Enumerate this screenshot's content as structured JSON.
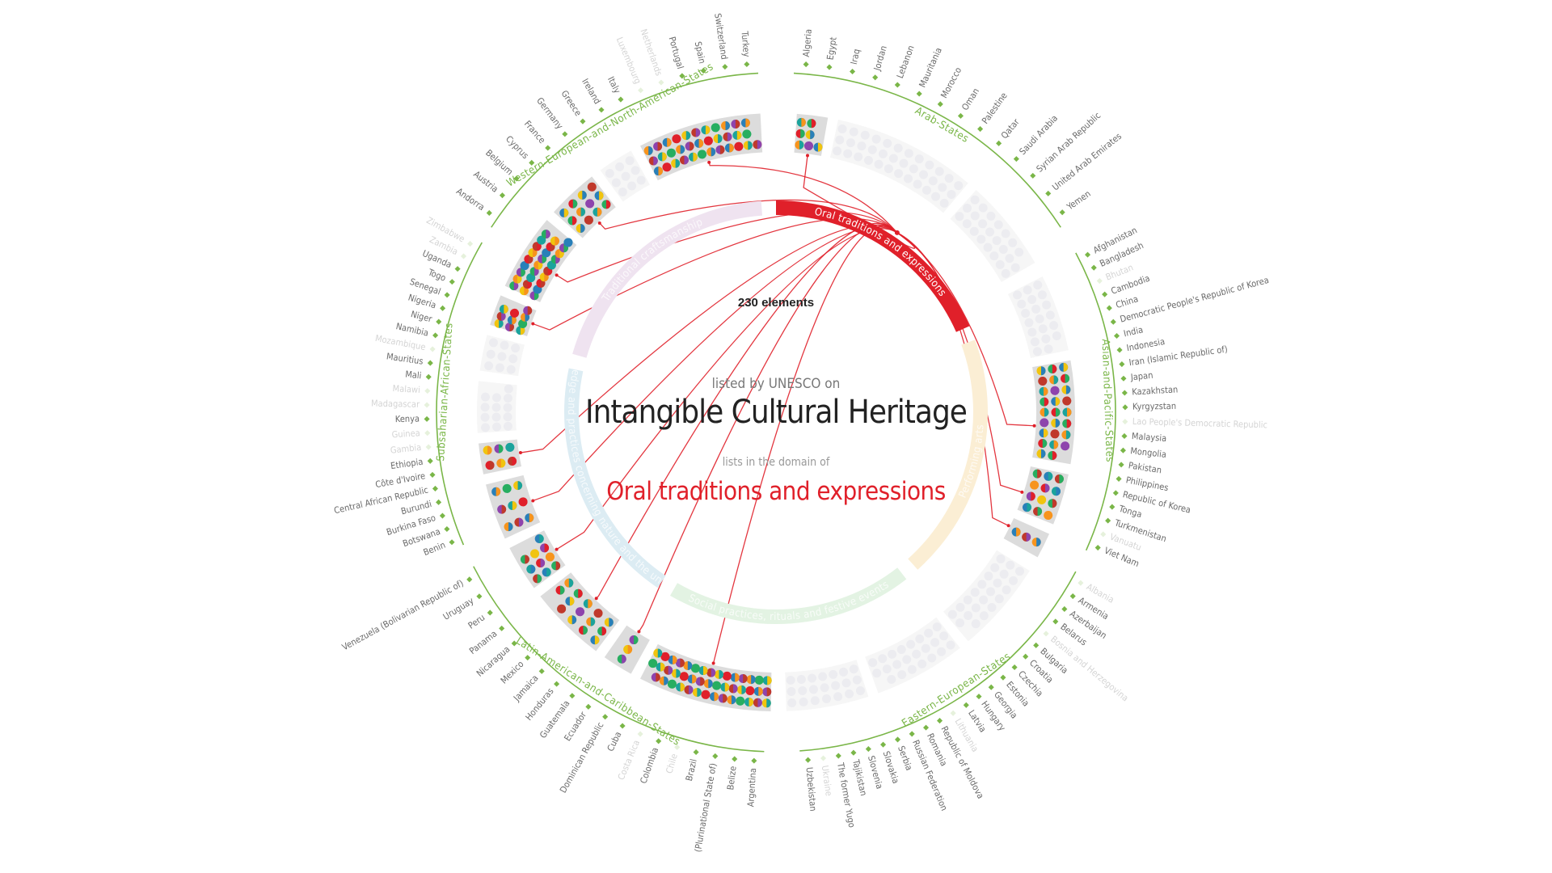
{
  "header": {
    "count_label": "230 elements",
    "listed_label": "listed by UNESCO on",
    "title": "Intangible Cultural Heritage",
    "lists_label": "lists in the domain of",
    "domain_label": "Oral traditions and expressions"
  },
  "colors": {
    "accent": "#e0202a",
    "region": "#7ab648",
    "country_text": "#6a6a6a",
    "country_dim": "#d4d4d4"
  },
  "domains": [
    {
      "name": "Oral traditions and expressions",
      "color": "#e0202a",
      "active": true
    },
    {
      "name": "Performing arts",
      "color": "#fbeed4",
      "active": false
    },
    {
      "name": "Social practices, rituals and festive events",
      "color": "#e3f3e3",
      "active": false
    },
    {
      "name": "Knowledge and practices concerning nature and the universe",
      "color": "#dcecf3",
      "active": false
    },
    {
      "name": "Traditional craftsmanship",
      "color": "#efe3f0",
      "active": false
    }
  ],
  "regions": [
    {
      "name": "Arab-States",
      "countries": [
        {
          "name": "Algeria",
          "active": true
        },
        {
          "name": "Egypt",
          "active": true
        },
        {
          "name": "Iraq",
          "active": true
        },
        {
          "name": "Jordan",
          "active": true
        },
        {
          "name": "Lebanon",
          "active": true
        },
        {
          "name": "Mauritania",
          "active": true
        },
        {
          "name": "Morocco",
          "active": true
        },
        {
          "name": "Oman",
          "active": true
        },
        {
          "name": "Palestine",
          "active": true
        },
        {
          "name": "Qatar",
          "active": true
        },
        {
          "name": "Saudi Arabia",
          "active": true
        },
        {
          "name": "Syrian Arab Republic",
          "active": true
        },
        {
          "name": "United Arab Emirates",
          "active": true
        },
        {
          "name": "Yemen",
          "active": true
        }
      ]
    },
    {
      "name": "Asian-and-Pacific-States",
      "countries": [
        {
          "name": "Afghanistan",
          "active": true
        },
        {
          "name": "Bangladesh",
          "active": true
        },
        {
          "name": "Bhutan",
          "active": false
        },
        {
          "name": "Cambodia",
          "active": true
        },
        {
          "name": "China",
          "active": true
        },
        {
          "name": "Democratic People's Republic of Korea",
          "active": true
        },
        {
          "name": "India",
          "active": true
        },
        {
          "name": "Indonesia",
          "active": true
        },
        {
          "name": "Iran (Islamic Republic of)",
          "active": true
        },
        {
          "name": "Japan",
          "active": true
        },
        {
          "name": "Kazakhstan",
          "active": true
        },
        {
          "name": "Kyrgyzstan",
          "active": true
        },
        {
          "name": "Lao People's Democratic Republic",
          "active": false
        },
        {
          "name": "Malaysia",
          "active": true
        },
        {
          "name": "Mongolia",
          "active": true
        },
        {
          "name": "Pakistan",
          "active": true
        },
        {
          "name": "Philippines",
          "active": true
        },
        {
          "name": "Republic of Korea",
          "active": true
        },
        {
          "name": "Tonga",
          "active": true
        },
        {
          "name": "Turkmenistan",
          "active": true
        },
        {
          "name": "Vanuatu",
          "active": false
        },
        {
          "name": "Viet Nam",
          "active": true
        }
      ]
    },
    {
      "name": "Eastern-European-States",
      "countries": [
        {
          "name": "Albania",
          "active": false
        },
        {
          "name": "Armenia",
          "active": true
        },
        {
          "name": "Azerbaijan",
          "active": true
        },
        {
          "name": "Belarus",
          "active": true
        },
        {
          "name": "Bosnia and Herzegovina",
          "active": false
        },
        {
          "name": "Bulgaria",
          "active": true
        },
        {
          "name": "Croatia",
          "active": true
        },
        {
          "name": "Czechia",
          "active": true
        },
        {
          "name": "Estonia",
          "active": true
        },
        {
          "name": "Georgia",
          "active": true
        },
        {
          "name": "Hungary",
          "active": true
        },
        {
          "name": "Latvia",
          "active": true
        },
        {
          "name": "Lithuania",
          "active": false
        },
        {
          "name": "Republic of Moldova",
          "active": true
        },
        {
          "name": "Romania",
          "active": true
        },
        {
          "name": "Russian Federation",
          "active": true
        },
        {
          "name": "Serbia",
          "active": true
        },
        {
          "name": "Slovakia",
          "active": true
        },
        {
          "name": "Slovenia",
          "active": true
        },
        {
          "name": "Tajikistan",
          "active": true
        },
        {
          "name": "The former Yugo",
          "active": true
        },
        {
          "name": "Ukraine",
          "active": false
        },
        {
          "name": "Uzbekistan",
          "active": true
        }
      ]
    },
    {
      "name": "Latin-American-and-Caribbean-States",
      "countries": [
        {
          "name": "Argentina",
          "active": true
        },
        {
          "name": "Belize",
          "active": true
        },
        {
          "name": "(Plurinational State of)",
          "active": true
        },
        {
          "name": "Brazil",
          "active": true
        },
        {
          "name": "Chile",
          "active": false
        },
        {
          "name": "Colombia",
          "active": true
        },
        {
          "name": "Costa Rica",
          "active": false
        },
        {
          "name": "Cuba",
          "active": true
        },
        {
          "name": "Dominican Republic",
          "active": true
        },
        {
          "name": "Ecuador",
          "active": true
        },
        {
          "name": "Guatemala",
          "active": true
        },
        {
          "name": "Honduras",
          "active": true
        },
        {
          "name": "Jamaica",
          "active": true
        },
        {
          "name": "Mexico",
          "active": true
        },
        {
          "name": "Nicaragua",
          "active": true
        },
        {
          "name": "Panama",
          "active": true
        },
        {
          "name": "Peru",
          "active": true
        },
        {
          "name": "Uruguay",
          "active": true
        },
        {
          "name": "Venezuela (Bolivarian Republic of)",
          "active": true
        }
      ]
    },
    {
      "name": "Subsaharian-African-States",
      "countries": [
        {
          "name": "Benin",
          "active": true
        },
        {
          "name": "Botswana",
          "active": true
        },
        {
          "name": "Burkina Faso",
          "active": true
        },
        {
          "name": "Burundi",
          "active": true
        },
        {
          "name": "Central African Republic",
          "active": true
        },
        {
          "name": "Côte d'Ivoire",
          "active": true
        },
        {
          "name": "Ethiopia",
          "active": true
        },
        {
          "name": "Gambia",
          "active": false
        },
        {
          "name": "Guinea",
          "active": false
        },
        {
          "name": "Kenya",
          "active": true
        },
        {
          "name": "Madagascar",
          "active": false
        },
        {
          "name": "Malawi",
          "active": false
        },
        {
          "name": "Mali",
          "active": true
        },
        {
          "name": "Mauritius",
          "active": true
        },
        {
          "name": "Mozambique",
          "active": false
        },
        {
          "name": "Namibia",
          "active": true
        },
        {
          "name": "Niger",
          "active": true
        },
        {
          "name": "Nigeria",
          "active": true
        },
        {
          "name": "Senegal",
          "active": true
        },
        {
          "name": "Togo",
          "active": true
        },
        {
          "name": "Uganda",
          "active": true
        },
        {
          "name": "Zambia",
          "active": false
        },
        {
          "name": "Zimbabwe",
          "active": false
        }
      ]
    },
    {
      "name": "Western-European-and-North-American-States",
      "countries": [
        {
          "name": "Andorra",
          "active": true
        },
        {
          "name": "Austria",
          "active": true
        },
        {
          "name": "Belgium",
          "active": true
        },
        {
          "name": "Cyprus",
          "active": true
        },
        {
          "name": "France",
          "active": true
        },
        {
          "name": "Germany",
          "active": true
        },
        {
          "name": "Greece",
          "active": true
        },
        {
          "name": "Ireland",
          "active": true
        },
        {
          "name": "Italy",
          "active": true
        },
        {
          "name": "Luxembourg",
          "active": false
        },
        {
          "name": "Netherlands",
          "active": false
        },
        {
          "name": "Portugal",
          "active": true
        },
        {
          "name": "Spain",
          "active": true
        },
        {
          "name": "Switzerland",
          "active": true
        },
        {
          "name": "Turkey",
          "active": true
        }
      ]
    }
  ]
}
